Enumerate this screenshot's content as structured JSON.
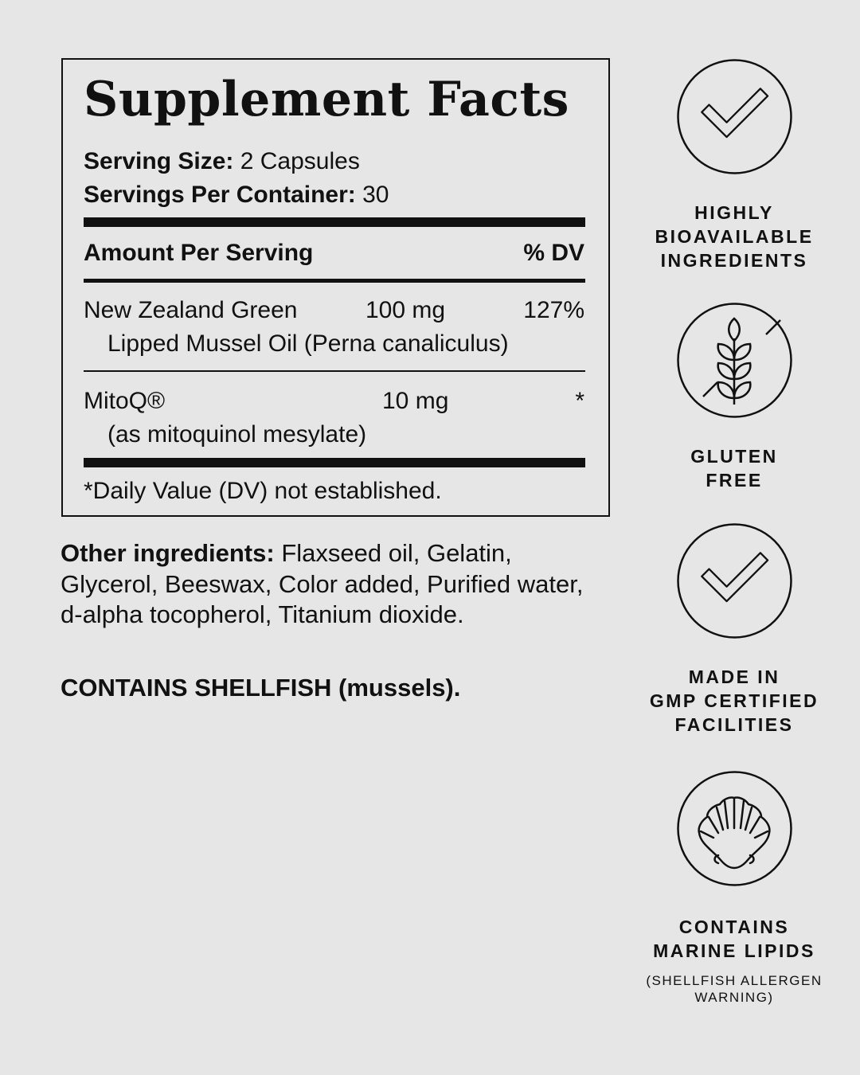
{
  "facts": {
    "title": "Supplement Facts",
    "serving_size_label": "Serving Size:",
    "serving_size_value": "2 Capsules",
    "servings_per_container_label": "Servings Per Container:",
    "servings_per_container_value": "30",
    "header_amount": "Amount Per Serving",
    "header_dv": "% DV",
    "rows": [
      {
        "name": "New Zealand Green",
        "name_cont": "Lipped Mussel Oil (Perna canaliculus)",
        "amount": "100 mg",
        "dv": "127%"
      },
      {
        "name": "MitoQ®",
        "name_cont": "(as mitoquinol mesylate)",
        "amount": "10 mg",
        "dv": "*"
      }
    ],
    "footnote": "*Daily Value (DV) not established."
  },
  "other_ingredients": {
    "label": "Other ingredients:",
    "text": " Flaxseed oil, Gelatin, Glycerol, Beeswax, Color added, Purified water, d-alpha tocopherol, Titanium dioxide."
  },
  "allergen": "CONTAINS SHELLFISH (mussels).",
  "badges": [
    {
      "icon": "checkmark-icon",
      "lines": [
        "HIGHLY",
        "BIOAVAILABLE",
        "INGREDIENTS"
      ]
    },
    {
      "icon": "gluten-free-wheat-icon",
      "lines": [
        "GLUTEN",
        "FREE"
      ]
    },
    {
      "icon": "checkmark-icon",
      "lines": [
        "MADE IN",
        "GMP CERTIFIED",
        "FACILITIES"
      ]
    },
    {
      "icon": "shell-icon",
      "lines": [
        "CONTAINS",
        "MARINE LIPIDS"
      ],
      "note": [
        "(SHELLFISH ALLERGEN",
        "WARNING)"
      ]
    }
  ],
  "colors": {
    "background": "#e6e6e6",
    "ink": "#111111"
  }
}
